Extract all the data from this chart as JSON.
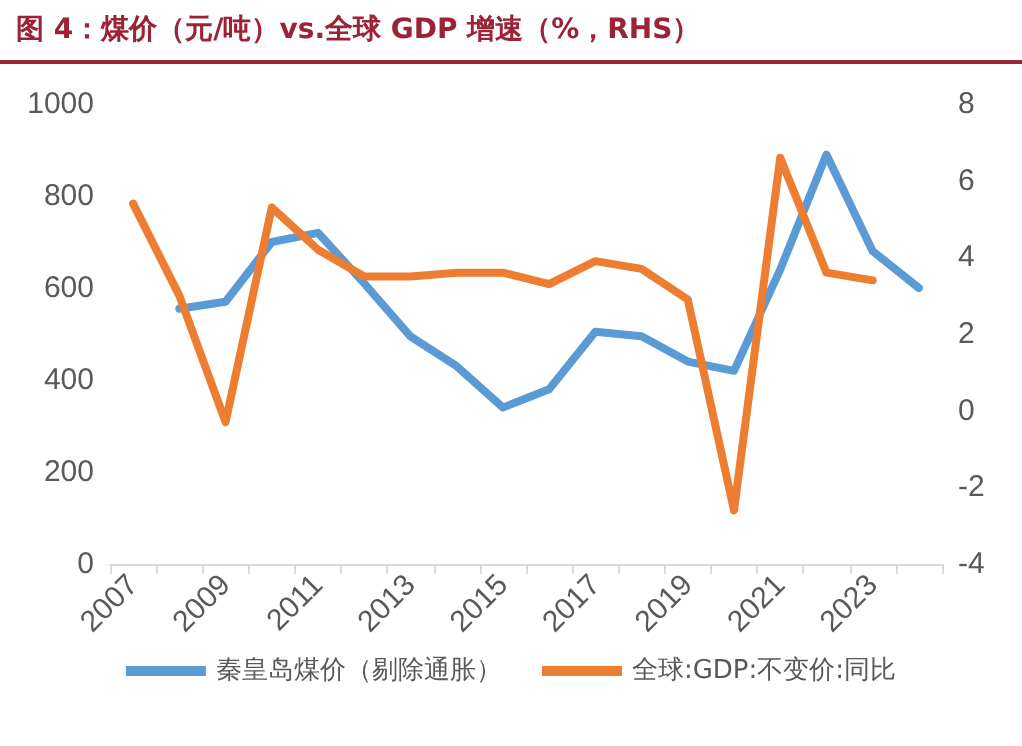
{
  "chart_data": {
    "type": "line",
    "title": "图 4：煤价（元/吨）vs.全球 GDP 增速（%，RHS）",
    "categories": [
      "2007",
      null,
      "2009",
      null,
      "2011",
      null,
      "2013",
      null,
      "2015",
      null,
      "2017",
      null,
      "2019",
      null,
      "2021",
      null,
      "2023",
      null
    ],
    "series": [
      {
        "name": "秦皇岛煤价（剔除通胀）",
        "color": "#5b9bd5",
        "values": [
          null,
          555,
          570,
          700,
          720,
          610,
          495,
          430,
          340,
          380,
          505,
          495,
          440,
          420,
          640,
          890,
          680,
          600
        ]
      },
      {
        "name": "全球:GDP:不变价:同比",
        "color": "#ed7d31",
        "axis": "y2",
        "values": [
          5.4,
          3.0,
          -0.3,
          5.3,
          4.2,
          3.5,
          3.5,
          3.6,
          3.6,
          3.3,
          3.9,
          3.7,
          2.9,
          -2.6,
          6.6,
          3.6,
          3.4,
          null
        ]
      }
    ],
    "ylim": [
      0,
      1000
    ],
    "yticks": [
      0,
      200,
      400,
      600,
      800,
      1000
    ],
    "y2lim": [
      -4,
      8
    ],
    "y2ticks": [
      -4,
      -2,
      0,
      2,
      4,
      6,
      8
    ],
    "grid": false,
    "legend": "bottom",
    "marker": "none",
    "line_style": "solid"
  }
}
